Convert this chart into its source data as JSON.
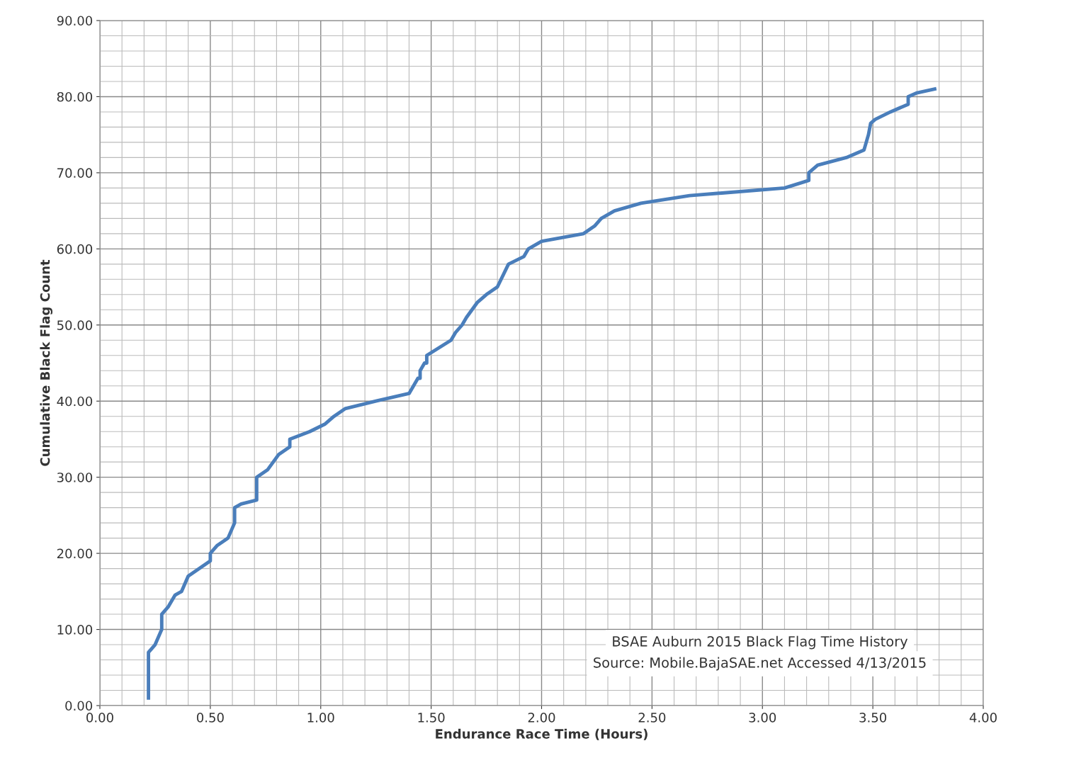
{
  "chart_data": {
    "type": "line",
    "xlabel": "Endurance Race Time (Hours)",
    "ylabel": "Cumulative Black Flag Count",
    "annotations": [
      "BSAE Auburn 2015 Black Flag Time History",
      "Source: Mobile.BajaSAE.net Accessed 4/13/2015"
    ],
    "x": [
      0.22,
      0.22,
      0.25,
      0.28,
      0.28,
      0.31,
      0.34,
      0.37,
      0.4,
      0.5,
      0.5,
      0.53,
      0.58,
      0.61,
      0.61,
      0.64,
      0.71,
      0.71,
      0.76,
      0.81,
      0.86,
      0.86,
      0.95,
      1.02,
      1.06,
      1.11,
      1.25,
      1.4,
      1.44,
      1.45,
      1.45,
      1.47,
      1.48,
      1.48,
      1.59,
      1.61,
      1.64,
      1.66,
      1.71,
      1.75,
      1.8,
      1.85,
      1.92,
      1.94,
      2.0,
      2.19,
      2.24,
      2.27,
      2.33,
      2.45,
      2.67,
      3.1,
      3.21,
      3.21,
      3.25,
      3.38,
      3.46,
      3.47,
      3.48,
      3.49,
      3.51,
      3.58,
      3.66,
      3.66,
      3.7,
      3.78
    ],
    "series": [
      {
        "color": "#4a7ebb",
        "values": [
          1,
          7,
          8,
          10,
          12,
          13,
          14.5,
          15,
          17,
          19,
          20,
          21,
          22,
          24,
          26,
          26.5,
          27,
          30,
          31,
          33,
          34,
          35,
          36,
          37,
          38,
          39,
          40,
          41,
          43,
          43,
          44,
          45,
          45,
          46,
          48,
          49,
          50,
          51,
          53,
          54,
          55,
          58,
          59,
          60,
          61,
          62,
          63,
          64,
          65,
          66,
          67,
          68,
          69,
          70,
          71,
          72,
          73,
          74,
          75,
          76.5,
          77,
          78,
          79,
          80,
          80.5,
          81
        ]
      }
    ],
    "xlim": [
      0,
      4
    ],
    "ylim": [
      0,
      90
    ],
    "xticks": [
      {
        "value": 0,
        "label": "0.00"
      },
      {
        "value": 0.5,
        "label": "0.50"
      },
      {
        "value": 1,
        "label": "1.00"
      },
      {
        "value": 1.5,
        "label": "1.50"
      },
      {
        "value": 2,
        "label": "2.00"
      },
      {
        "value": 2.5,
        "label": "2.50"
      },
      {
        "value": 3,
        "label": "3.00"
      },
      {
        "value": 3.5,
        "label": "3.50"
      },
      {
        "value": 4,
        "label": "4.00"
      }
    ],
    "yticks": [
      {
        "value": 0,
        "label": "0.00"
      },
      {
        "value": 10,
        "label": "10.00"
      },
      {
        "value": 20,
        "label": "20.00"
      },
      {
        "value": 30,
        "label": "30.00"
      },
      {
        "value": 40,
        "label": "40.00"
      },
      {
        "value": 50,
        "label": "50.00"
      },
      {
        "value": 60,
        "label": "60.00"
      },
      {
        "value": 70,
        "label": "70.00"
      },
      {
        "value": 80,
        "label": "80.00"
      },
      {
        "value": 90,
        "label": "90.00"
      }
    ],
    "grid": true,
    "marker": "none",
    "line_style": "solid"
  }
}
